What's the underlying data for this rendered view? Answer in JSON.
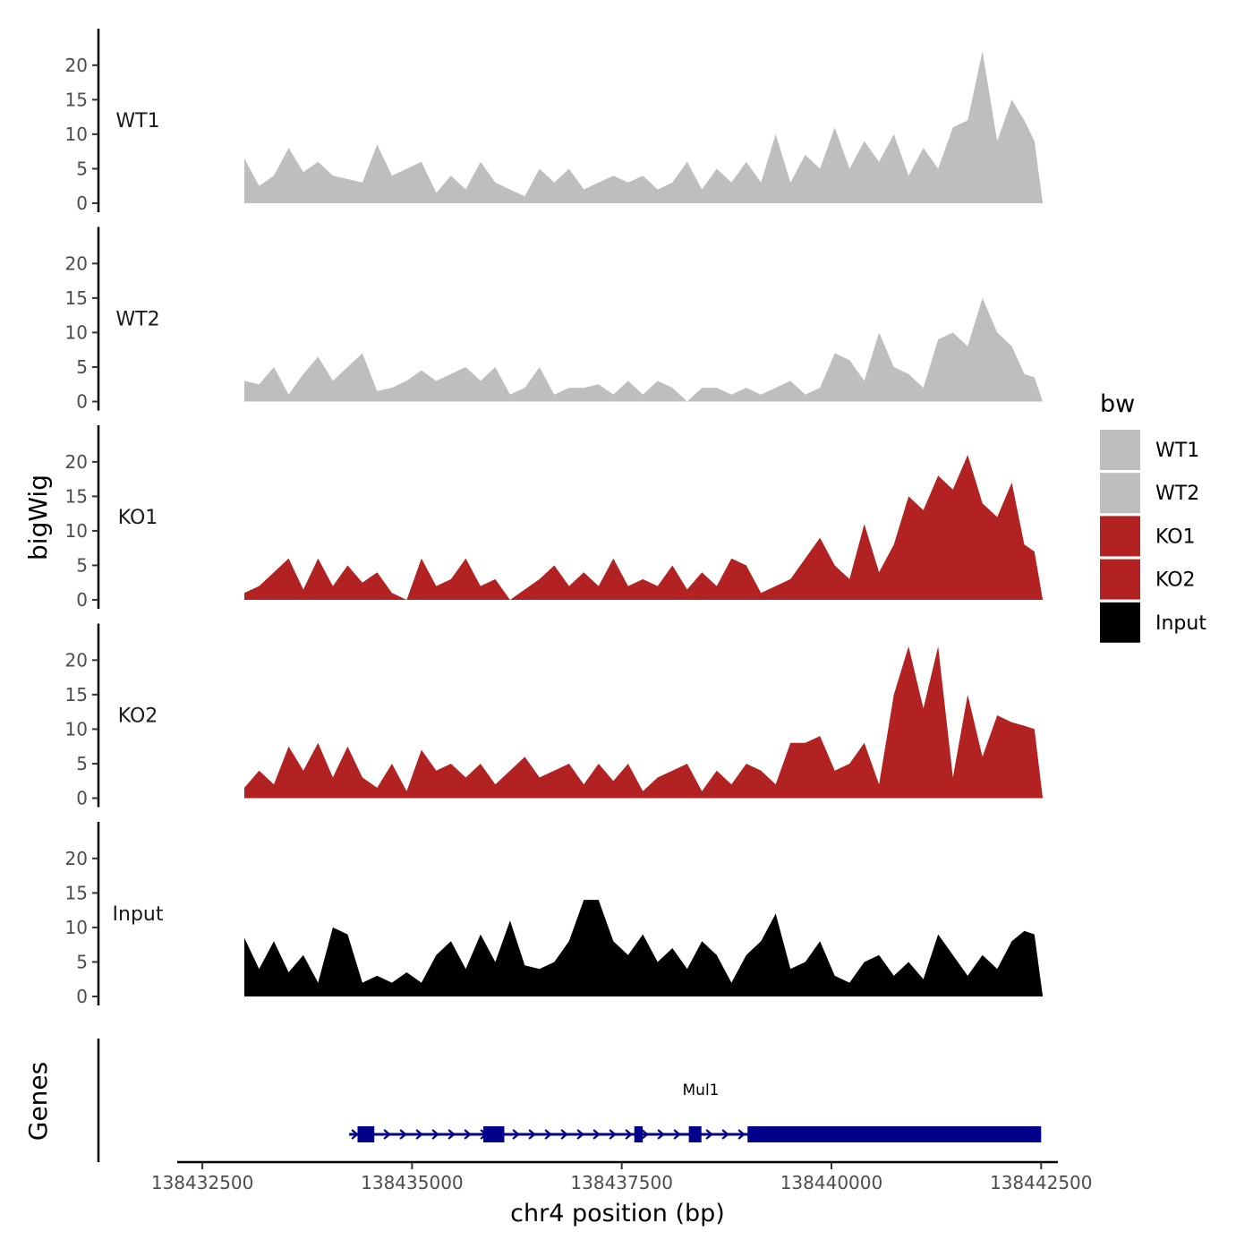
{
  "chart_data": {
    "type": "area",
    "ylabel": "bigWig",
    "xlabel": "chr4 position (bp)",
    "legend": {
      "title": "bw",
      "position": "right",
      "entries": [
        {
          "label": "WT1",
          "color": "#bebebe"
        },
        {
          "label": "WT2",
          "color": "#bebebe"
        },
        {
          "label": "KO1",
          "color": "#b22222"
        },
        {
          "label": "KO2",
          "color": "#b22222"
        },
        {
          "label": "Input",
          "color": "#000000"
        }
      ]
    },
    "xlim": [
      138432200,
      138442700
    ],
    "xticks": [
      138432500,
      138435000,
      138437500,
      138440000,
      138442500
    ],
    "xtick_labels": [
      "138432500",
      "138435000",
      "138437500",
      "138440000",
      "138442500"
    ],
    "ylim": [
      0,
      24
    ],
    "yticks": [
      0,
      5,
      10,
      15,
      20
    ],
    "ytick_labels": [
      "0",
      "5",
      "10",
      "15",
      "20"
    ],
    "track_x": [
      138433000,
      138433176,
      138433352,
      138433528,
      138433704,
      138433880,
      138434056,
      138434232,
      138434408,
      138434584,
      138434760,
      138434936,
      138435112,
      138435288,
      138435464,
      138435640,
      138435816,
      138435992,
      138436168,
      138436344,
      138436520,
      138436696,
      138436872,
      138437048,
      138437224,
      138437400,
      138437576,
      138437752,
      138437928,
      138438104,
      138438280,
      138438456,
      138438632,
      138438808,
      138438984,
      138439160,
      138439336,
      138439512,
      138439688,
      138439864,
      138440040,
      138440216,
      138440392,
      138440568,
      138440744,
      138440920,
      138441096,
      138441272,
      138441448,
      138441624,
      138441800,
      138441976,
      138442150,
      138442300,
      138442420,
      138442520
    ],
    "series": [
      {
        "name": "WT1",
        "label": "WT1",
        "color": "#bebebe",
        "values": [
          6.5,
          2.5,
          4,
          8,
          4.5,
          6,
          4,
          3.5,
          3,
          8.5,
          4,
          5,
          6,
          1.5,
          4,
          2,
          6,
          3,
          2,
          1,
          5,
          3,
          5,
          2,
          3,
          4,
          3,
          4,
          2,
          3,
          6,
          2,
          5,
          3,
          6,
          3,
          10,
          3,
          7,
          5,
          11,
          5,
          9,
          6,
          10,
          4,
          8,
          5,
          11,
          12,
          22,
          9,
          15,
          12,
          9,
          0
        ]
      },
      {
        "name": "WT2",
        "label": "WT2",
        "color": "#bebebe",
        "values": [
          3,
          2.5,
          5,
          1,
          4,
          6.5,
          3,
          5,
          7,
          1.5,
          2,
          3,
          4.5,
          3,
          4,
          5,
          3,
          5,
          1,
          2,
          5,
          1,
          2,
          2,
          2.5,
          1,
          3,
          1,
          3,
          2,
          0,
          2,
          2,
          1,
          2,
          1,
          2,
          3,
          1,
          2,
          7,
          6,
          3,
          10,
          5,
          4,
          2,
          9,
          10,
          8,
          15,
          10,
          8,
          4,
          3.5,
          0
        ]
      },
      {
        "name": "KO1",
        "label": "KO1",
        "color": "#b22222",
        "values": [
          1,
          2,
          4,
          6,
          1.5,
          6,
          2,
          5,
          2.5,
          4,
          1,
          0,
          6,
          2,
          3,
          6,
          2,
          3,
          0,
          1.5,
          3,
          5,
          2,
          4,
          2,
          6,
          2,
          3,
          2,
          5,
          1.5,
          4,
          2,
          6,
          5,
          1,
          2,
          3,
          6,
          9,
          5,
          3,
          11,
          4,
          8,
          15,
          13,
          18,
          16,
          21,
          14,
          12,
          17,
          8,
          7,
          0
        ]
      },
      {
        "name": "KO2",
        "label": "KO2",
        "color": "#b22222",
        "values": [
          1.5,
          4,
          2,
          7.5,
          4,
          8,
          3,
          7.5,
          3,
          1.5,
          5,
          1,
          7,
          4,
          5,
          3,
          5,
          2,
          4,
          6,
          3,
          4,
          5,
          2,
          5,
          2.5,
          5,
          1,
          3,
          4,
          5,
          1,
          4,
          2,
          5,
          4,
          2,
          8,
          8,
          9,
          4,
          5,
          8,
          2,
          15,
          22,
          13,
          22,
          3,
          15,
          6,
          12,
          11,
          10.5,
          10,
          0
        ]
      },
      {
        "name": "Input",
        "label": "Input",
        "color": "#000000",
        "values": [
          8.5,
          4,
          8,
          3.5,
          6,
          2,
          10,
          9,
          2,
          3,
          2,
          3.5,
          2,
          6,
          8,
          4,
          9,
          5,
          11,
          4.5,
          4,
          5,
          8,
          14,
          14,
          8,
          6,
          9,
          5,
          7,
          4,
          8,
          6,
          2,
          6,
          8,
          12,
          4,
          5,
          8,
          3,
          2,
          5,
          6,
          3,
          5,
          2.5,
          9,
          6,
          3,
          6,
          4,
          8,
          9.5,
          9,
          0
        ]
      }
    ],
    "gene_track": {
      "ylabel": "Genes",
      "gene_name": "Mul1",
      "start": 138434250,
      "end": 138442500,
      "strand": "+",
      "color": "#00008b",
      "exons": [
        {
          "start": 138434350,
          "end": 138434550
        },
        {
          "start": 138435850,
          "end": 138436100
        },
        {
          "start": 138437650,
          "end": 138437750
        },
        {
          "start": 138438300,
          "end": 138438450
        },
        {
          "start": 138439000,
          "end": 138442500
        }
      ]
    }
  }
}
